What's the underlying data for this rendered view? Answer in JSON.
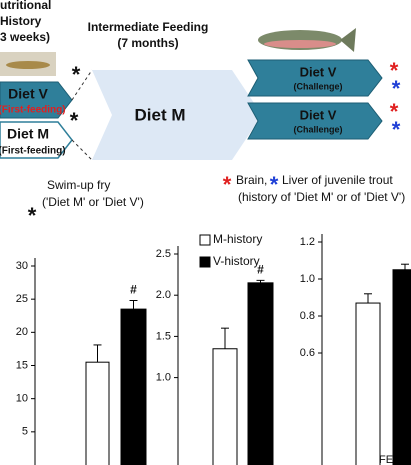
{
  "diagram": {
    "nutritional_history": [
      "utritional",
      "History",
      "3 weeks)"
    ],
    "intermediate": [
      "Intermediate Feeding",
      "(7 months)"
    ],
    "first_feeding": [
      {
        "diet": "Diet V",
        "stage": "(First-feeding)"
      },
      {
        "diet": "Diet M",
        "stage": "(First-feeding)"
      }
    ],
    "center": "Diet M",
    "challenge": [
      {
        "diet": "Diet V",
        "stage": "(Challenge)"
      },
      {
        "diet": "Diet V",
        "stage": "(Challenge)"
      }
    ],
    "swim_up": [
      "Swim-up fry",
      "('Diet M' or 'Diet V')"
    ],
    "tissues": [
      "Brain,",
      "Liver of juvenile trout",
      "(history of 'Diet M' or of 'Diet V')"
    ]
  },
  "chart_data": [
    {
      "type": "bar",
      "categories": [
        null
      ],
      "series": [
        {
          "color": "#ffffff",
          "values": [
            15.5
          ],
          "errors": [
            2.6
          ]
        },
        {
          "color": "#000000",
          "values": [
            23.5
          ],
          "errors": [
            1.3
          ]
        }
      ],
      "annotations": [
        "#"
      ],
      "ylim": [
        0,
        30
      ],
      "yticks": [
        5,
        10,
        15,
        20,
        25,
        30
      ]
    },
    {
      "type": "bar",
      "categories": [
        null
      ],
      "series": [
        {
          "name": "M-history",
          "color": "#ffffff",
          "values": [
            1.35
          ],
          "errors": [
            0.25
          ]
        },
        {
          "name": "V-history",
          "color": "#000000",
          "values": [
            2.15
          ],
          "errors": [
            0.03
          ]
        }
      ],
      "annotations": [
        "#"
      ],
      "ylim": [
        0,
        2.5
      ],
      "yticks": [
        {
          "value": 1,
          "label": "1.0"
        },
        1.5,
        {
          "value": 2,
          "label": "2.0"
        },
        2.5
      ]
    },
    {
      "type": "bar",
      "categories": [
        "FE"
      ],
      "series": [
        {
          "color": "#ffffff",
          "values": [
            0.87
          ],
          "errors": [
            0.05
          ]
        },
        {
          "color": "#000000",
          "values": [
            1.05
          ],
          "errors": [
            0.03
          ]
        }
      ],
      "ylim": [
        0,
        1.2
      ],
      "yticks": [
        0.6,
        0.8,
        {
          "value": 1,
          "label": "1.0"
        },
        1.2
      ]
    }
  ]
}
